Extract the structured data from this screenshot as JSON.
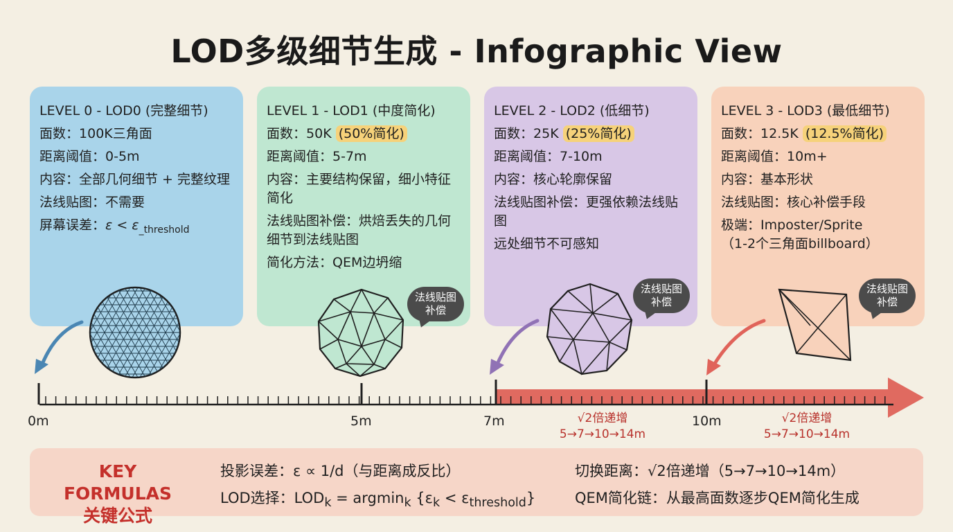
{
  "title": "LOD多级细节生成 - Infographic View",
  "cards": [
    {
      "head": "LEVEL 0 - LOD0 (完整细节)",
      "faces_label": "面数：",
      "faces": "100K三角面",
      "faces_tag": "",
      "dist_label": "距离阈值：",
      "dist": "0-5m",
      "content_label": "内容：",
      "content": "全部几何细节 + 完整纹理",
      "normal_label": "法线贴图：",
      "normal": "不需要",
      "err_label": "屏幕误差：",
      "err_main": "ε < ε",
      "err_sub": "_threshold"
    },
    {
      "head": "LEVEL 1 - LOD1 (中度简化)",
      "faces_label": "面数：",
      "faces": "50K",
      "faces_tag": "(50%简化)",
      "dist_label": "距离阈值：",
      "dist": "5-7m",
      "content_label": "内容：",
      "content": "主要结构保留，细小特征简化",
      "normal_label": "法线贴图补偿：",
      "normal": "烘焙丢失的几何细节到法线贴图",
      "method_label": "简化方法：",
      "method": "QEM边坍缩",
      "bubble": [
        "法线贴图",
        "补偿"
      ]
    },
    {
      "head": "LEVEL 2 - LOD2 (低细节)",
      "faces_label": "面数：",
      "faces": "25K",
      "faces_tag": "(25%简化)",
      "dist_label": "距离阈值：",
      "dist": "7-10m",
      "content_label": "内容：",
      "content": "核心轮廓保留",
      "normal_label": "法线贴图补偿：",
      "normal": "更强依赖法线贴图",
      "extra": "远处细节不可感知",
      "bubble": [
        "法线贴图",
        "补偿"
      ]
    },
    {
      "head": "LEVEL 3 - LOD3 (最低细节)",
      "faces_label": "面数：",
      "faces": "12.5K",
      "faces_tag": "(12.5%简化)",
      "dist_label": "距离阈值：",
      "dist": "10m+",
      "content_label": "内容：",
      "content": "基本形状",
      "normal_label": "法线贴图：",
      "normal": "核心补偿手段",
      "extreme_label": "极端：",
      "extreme": "Imposter/Sprite",
      "extreme2": "（1-2个三角面billboard）",
      "bubble": [
        "法线贴图",
        "补偿"
      ]
    }
  ],
  "axis": {
    "labels": [
      "0m",
      "5m",
      "7m",
      "10m"
    ],
    "growth": [
      {
        "line1": "√2倍递增",
        "line2": "5→7→10→14m"
      },
      {
        "line1": "√2倍递增",
        "line2": "5→7→10→14m"
      }
    ]
  },
  "formulas": {
    "kf_en": "KEY FORMULAS",
    "kf_cn": "关键公式",
    "proj_label": "投影误差：",
    "proj": "ε ∝ 1/d（与距离成反比）",
    "lod_label": "LOD选择：",
    "lod_a": "LOD",
    "lod_k1": "k",
    "lod_b": " = argmin",
    "lod_k2": "k",
    "lod_c": " {ε",
    "lod_k3": "k",
    "lod_d": " < ε",
    "lod_th": "threshold",
    "lod_e": "}",
    "switch_label": "切换距离：",
    "switch": "√2倍递增（5→7→10→14m）",
    "qem_label": "QEM简化链：",
    "qem": "从最高面数逐步QEM简化生成"
  },
  "colors": {
    "lod0": "#a9d4ea",
    "lod1": "#bfe7d1",
    "lod2": "#d8c7e6",
    "lod3": "#f8d2bb",
    "accent_red": "#c4302b",
    "arrow_red": "#e35d52"
  }
}
